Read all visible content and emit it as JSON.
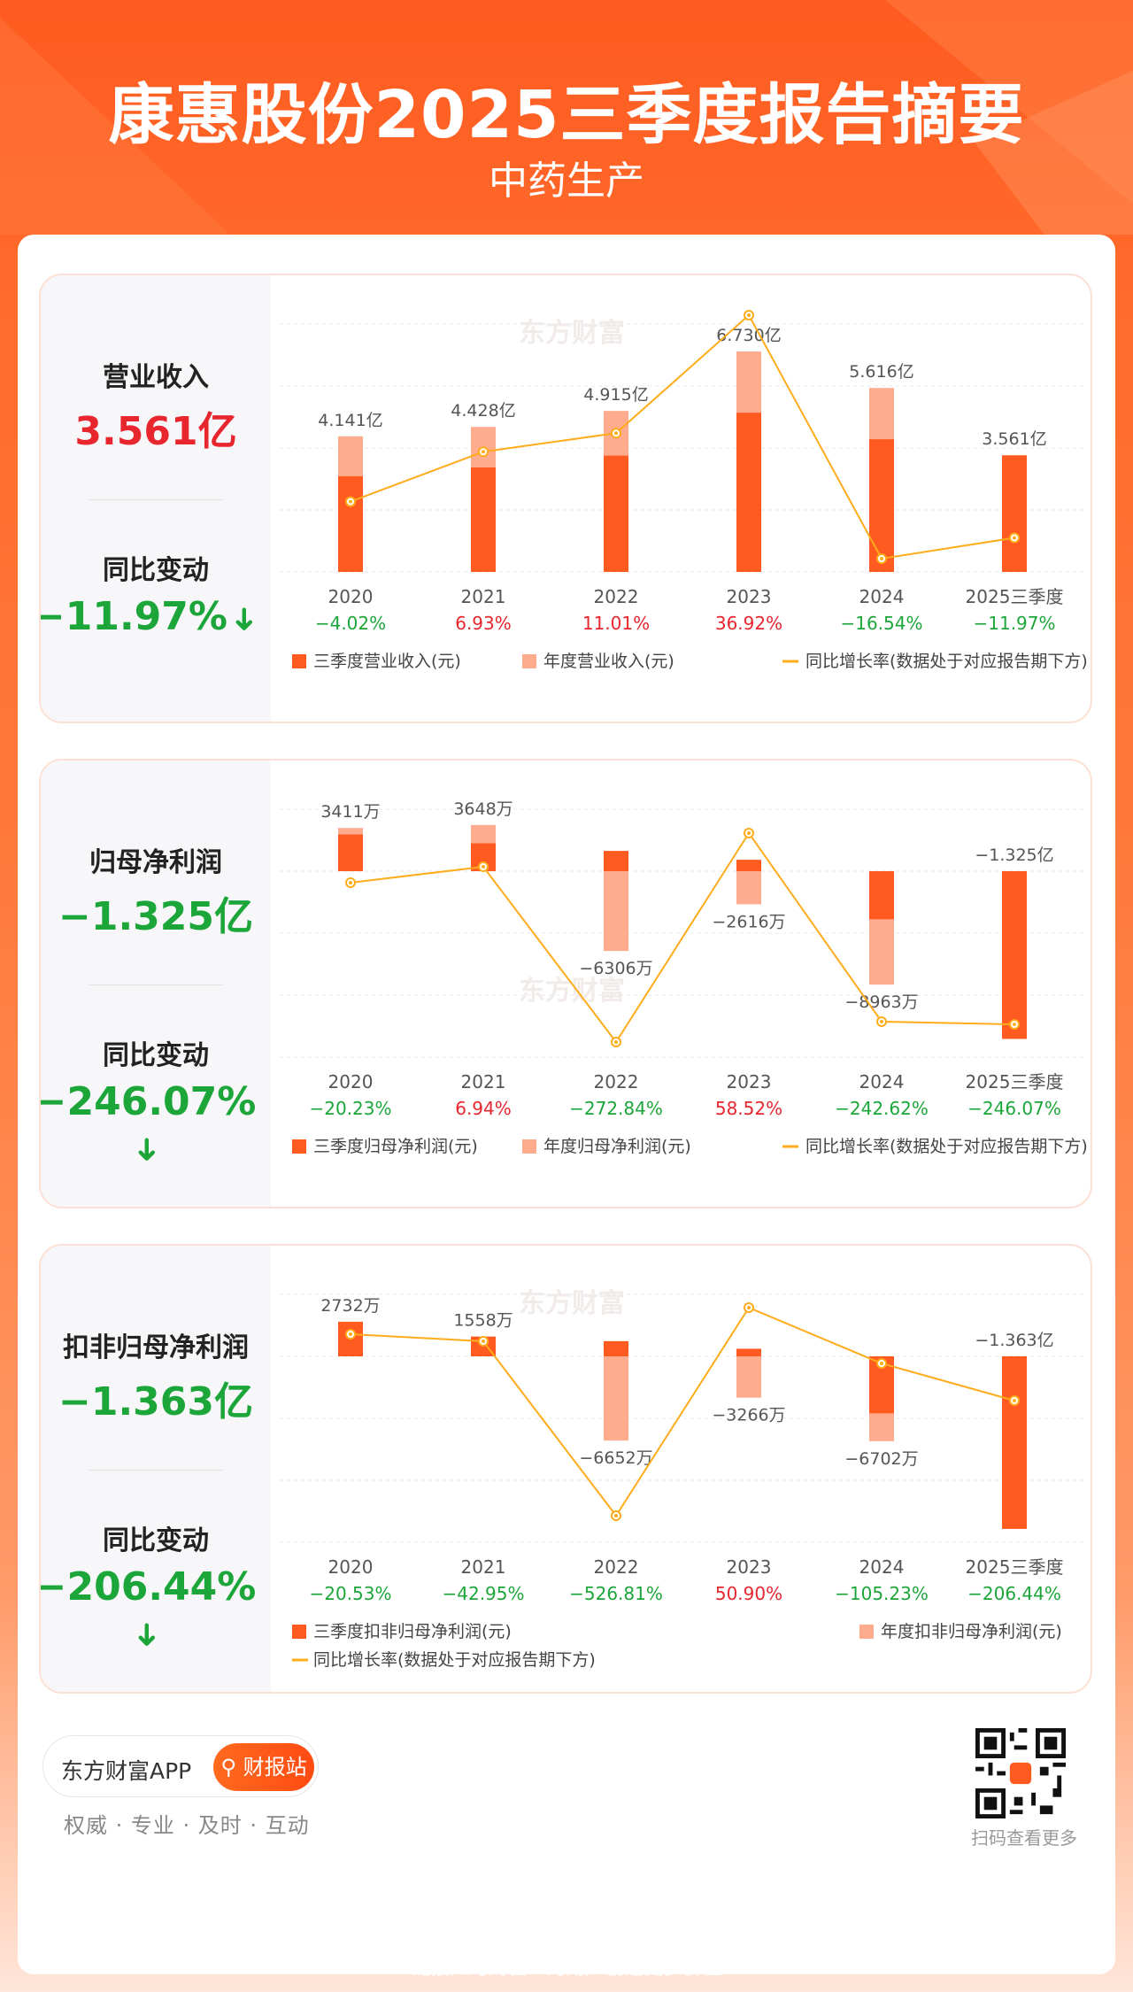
{
  "page": {
    "title": "康惠股份2025三季度报告摘要",
    "subtitle": "中药生产",
    "watermark": "东方财富",
    "colors": {
      "bar_q3": "#ff5a1f",
      "bar_year": "#ffab8e",
      "line": "#ffac1c",
      "pos": "#e8262e",
      "neg": "#1ca63a"
    }
  },
  "chart_data": [
    {
      "type": "bar",
      "categories": [
        "2020",
        "2021",
        "2022",
        "2023",
        "2024",
        "2025三季度"
      ],
      "q3_values": [
        2.92,
        3.19,
        3.55,
        4.86,
        4.05,
        3.561
      ],
      "annual_values": [
        4.141,
        4.428,
        4.915,
        6.73,
        5.616,
        null
      ],
      "unit": "亿",
      "value_labels": [
        "4.141亿",
        "4.428亿",
        "4.915亿",
        "6.730亿",
        "5.616亿",
        "3.561亿"
      ],
      "yoy_pct": [
        -4.02,
        6.93,
        11.01,
        36.92,
        -16.54,
        -11.97
      ],
      "yoy_labels": [
        "−4.02%",
        "6.93%",
        "11.01%",
        "36.92%",
        "−16.54%",
        "−11.97%"
      ],
      "legend": [
        "三季度营业收入(元)",
        "年度营业收入(元)",
        "同比增长率(数据处于对应报告期下方)"
      ],
      "ylim": [
        0,
        8.0
      ]
    },
    {
      "type": "bar",
      "categories": [
        "2020",
        "2021",
        "2022",
        "2023",
        "2024",
        "2025三季度"
      ],
      "q3_values": [
        2900,
        2200,
        1600,
        900,
        -3800,
        -13250
      ],
      "annual_values": [
        3411,
        3648,
        -6306,
        -2616,
        -8963,
        null
      ],
      "unit": "万",
      "value_labels": [
        "3411万",
        "3648万",
        "−6306万",
        "−2616万",
        "−8963万",
        "−1.325亿"
      ],
      "yoy_pct": [
        -20.23,
        6.94,
        -272.84,
        58.52,
        -242.62,
        -246.07
      ],
      "yoy_labels": [
        "−20.23%",
        "6.94%",
        "−272.84%",
        "58.52%",
        "−242.62%",
        "−246.07%"
      ],
      "legend": [
        "三季度归母净利润(元)",
        "年度归母净利润(元)",
        "同比增长率(数据处于对应报告期下方)"
      ],
      "ylim": [
        -15000,
        6000
      ]
    },
    {
      "type": "bar",
      "categories": [
        "2020",
        "2021",
        "2022",
        "2023",
        "2024",
        "2025三季度"
      ],
      "q3_values": [
        2732,
        1558,
        1200,
        600,
        -4500,
        -13630
      ],
      "annual_values": [
        2732,
        1558,
        -6652,
        -3266,
        -6702,
        null
      ],
      "unit": "万",
      "value_labels": [
        "2732万",
        "1558万",
        "−6652万",
        "−3266万",
        "−6702万",
        "−1.363亿"
      ],
      "yoy_pct": [
        -20.53,
        -42.95,
        -526.81,
        50.9,
        -105.23,
        -206.44
      ],
      "yoy_labels": [
        "−20.53%",
        "−42.95%",
        "−526.81%",
        "50.90%",
        "−105.23%",
        "−206.44%"
      ],
      "legend": [
        "三季度扣非归母净利润(元)",
        "年度扣非归母净利润(元)",
        "同比增长率(数据处于对应报告期下方)"
      ],
      "ylim": [
        -15000,
        6000
      ]
    }
  ],
  "summaries": [
    {
      "label": "营业收入",
      "value": "3.561亿",
      "change_label": "同比变动",
      "change": "−11.97%",
      "value_color": "red"
    },
    {
      "label": "归母净利润",
      "value": "−1.325亿",
      "change_label": "同比变动",
      "change": "−246.07%",
      "value_color": "green"
    },
    {
      "label": "扣非归母净利润",
      "value": "−1.363亿",
      "change_label": "同比变动",
      "change": "−206.44%",
      "value_color": "green"
    }
  ],
  "footer": {
    "app_name": "东方财富APP",
    "button": "财报站",
    "slogan": "权威 · 专业 · 及时 · 互动",
    "qr_caption": "扫码查看更多",
    "tagline": "链接人与财富 · 为用户创造更多价值"
  }
}
